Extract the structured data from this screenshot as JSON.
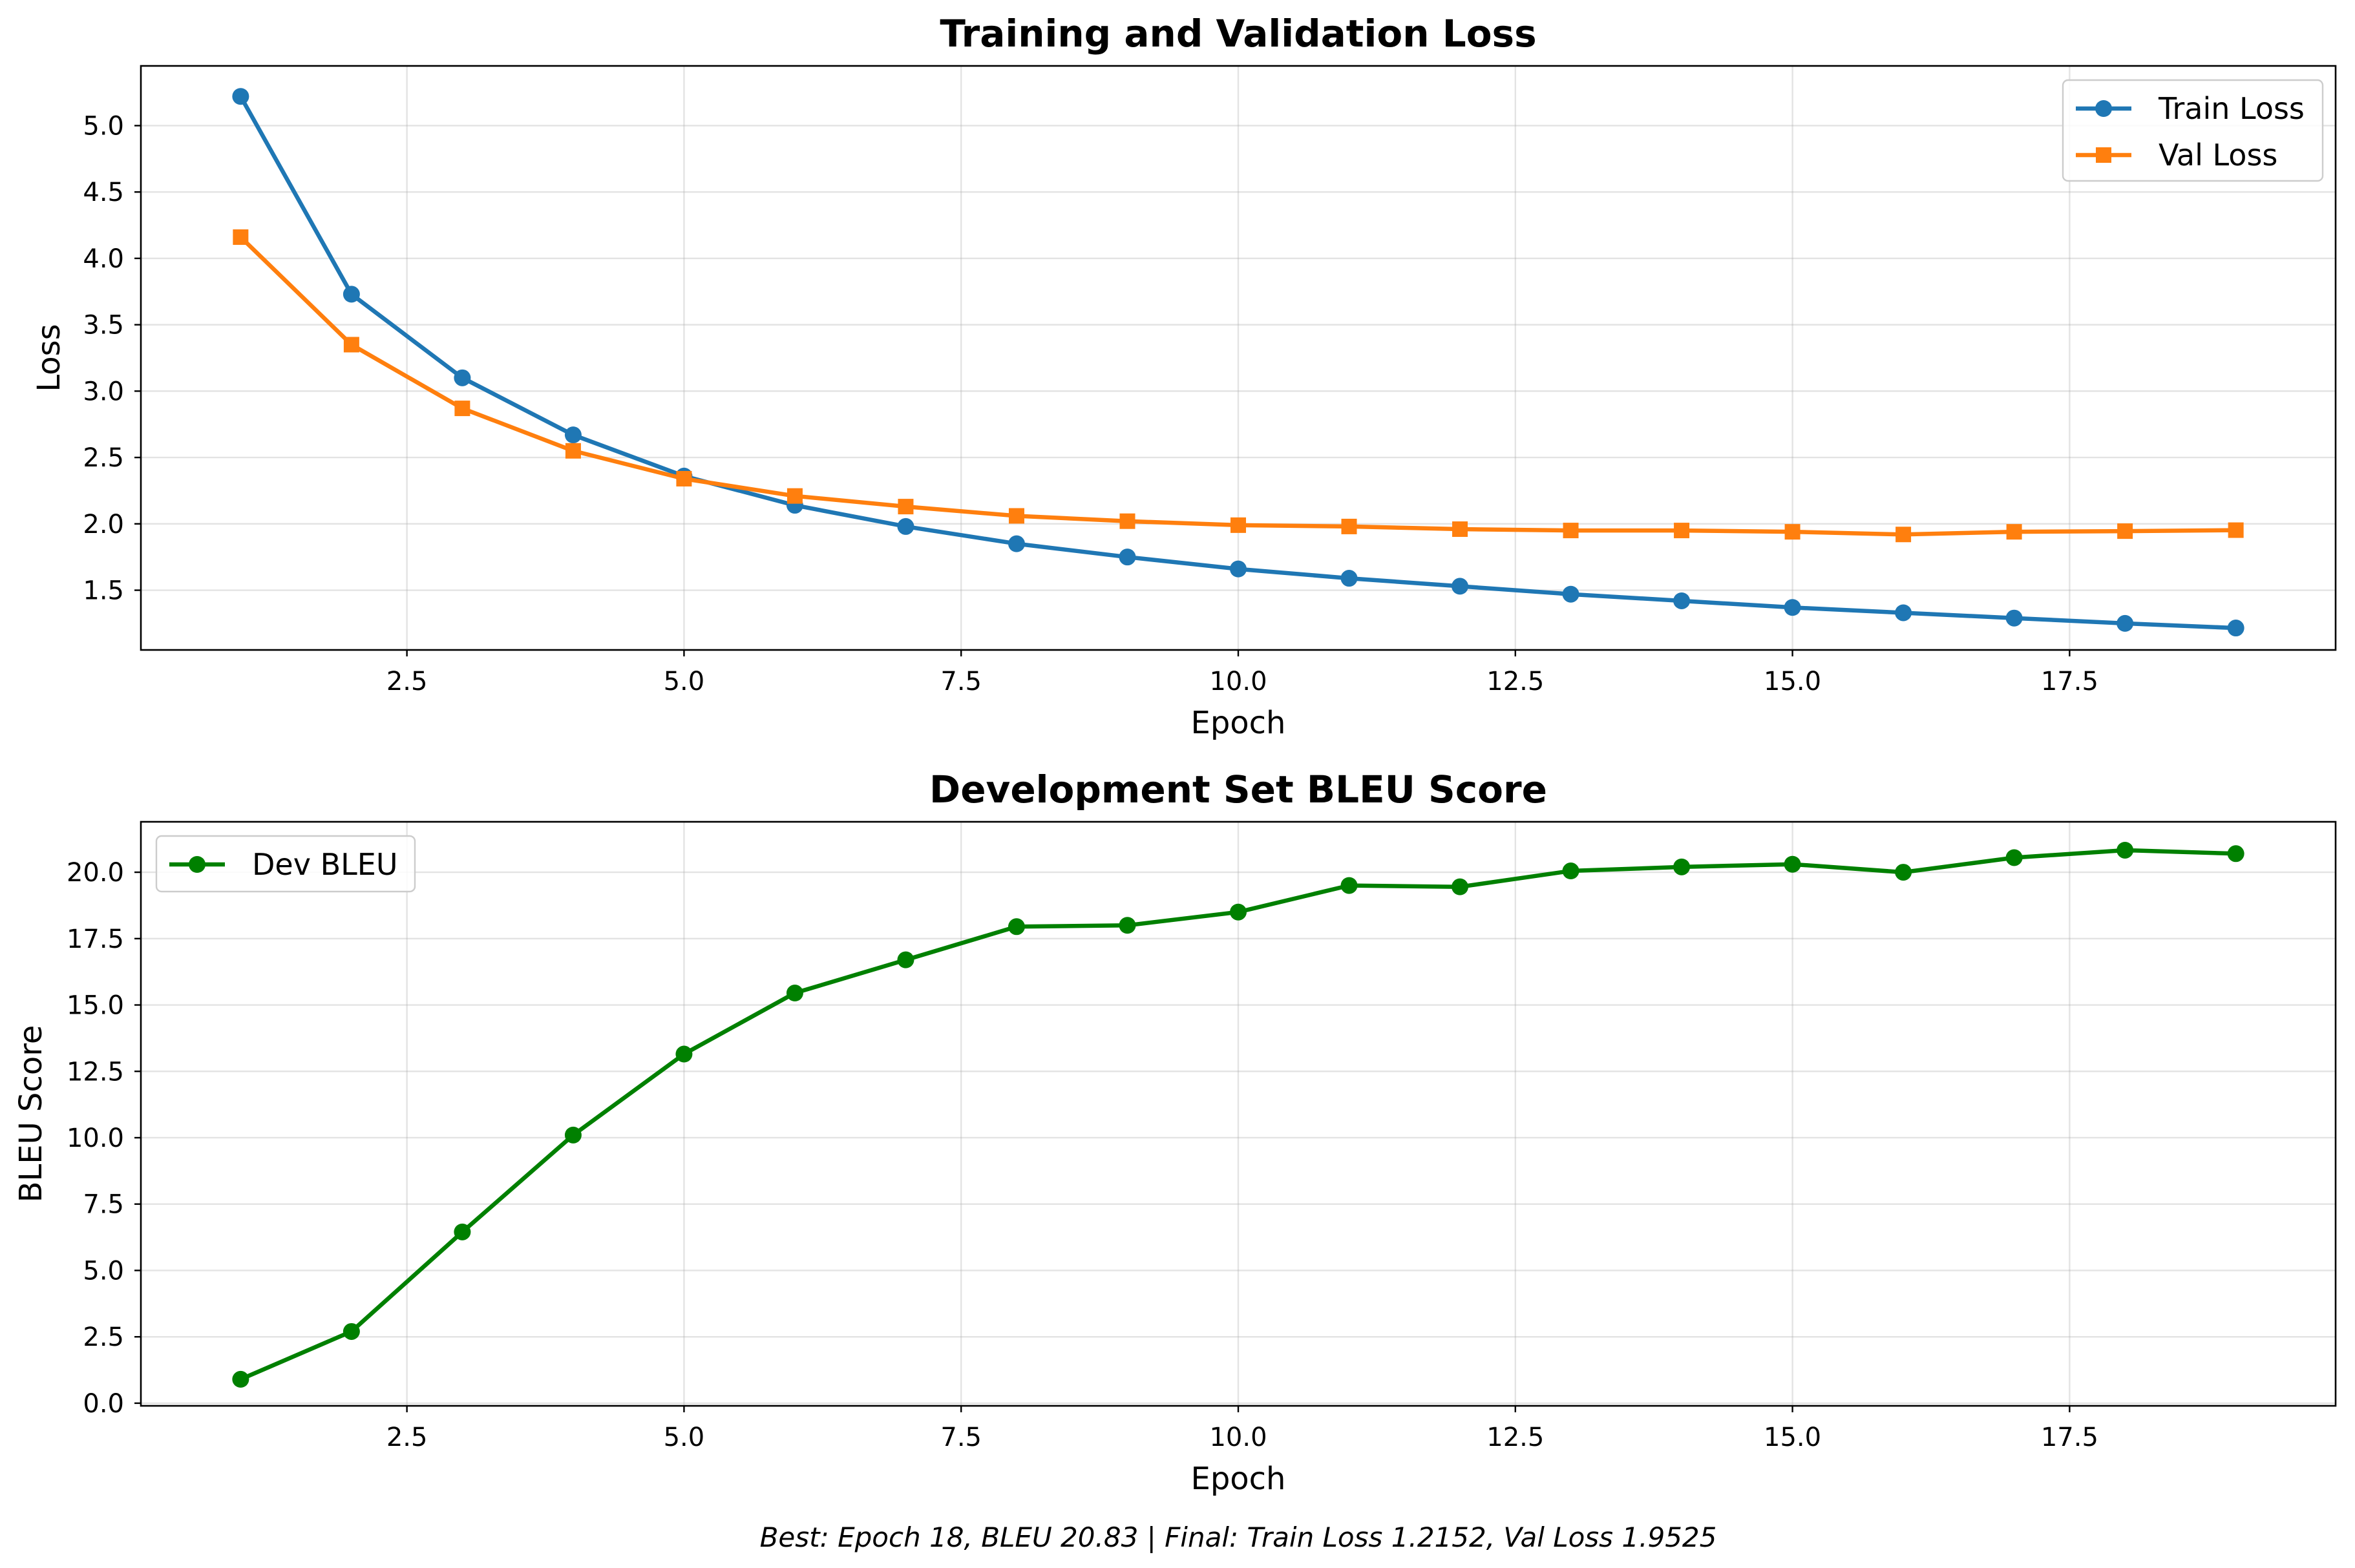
{
  "chart_data": [
    {
      "type": "line",
      "title": "Training and Validation Loss",
      "xlabel": "Epoch",
      "ylabel": "Loss",
      "xlim": [
        0.1,
        19.9
      ],
      "ylim": [
        1.05,
        5.45
      ],
      "xticks": [
        "2.5",
        "5.0",
        "7.5",
        "10.0",
        "12.5",
        "15.0",
        "17.5"
      ],
      "yticks": [
        "1.5",
        "2.0",
        "2.5",
        "3.0",
        "3.5",
        "4.0",
        "4.5",
        "5.0"
      ],
      "grid": true,
      "legend": "upper right",
      "x": [
        1,
        2,
        3,
        4,
        5,
        6,
        7,
        8,
        9,
        10,
        11,
        12,
        13,
        14,
        15,
        16,
        17,
        18,
        19
      ],
      "series": [
        {
          "name": "Train Loss",
          "color": "#1f77b4",
          "marker": "circle",
          "values": [
            5.22,
            3.73,
            3.1,
            2.67,
            2.36,
            2.14,
            1.98,
            1.85,
            1.75,
            1.66,
            1.59,
            1.53,
            1.47,
            1.42,
            1.37,
            1.33,
            1.29,
            1.25,
            1.2152
          ]
        },
        {
          "name": "Val Loss",
          "color": "#ff7f0e",
          "marker": "square",
          "values": [
            4.16,
            3.35,
            2.87,
            2.55,
            2.34,
            2.21,
            2.13,
            2.06,
            2.02,
            1.99,
            1.98,
            1.96,
            1.95,
            1.95,
            1.94,
            1.92,
            1.94,
            1.945,
            1.9525
          ]
        }
      ]
    },
    {
      "type": "line",
      "title": "Development Set BLEU Score",
      "xlabel": "Epoch",
      "ylabel": "BLEU Score",
      "xlim": [
        0.1,
        19.9
      ],
      "ylim": [
        -0.1,
        21.9
      ],
      "xticks": [
        "2.5",
        "5.0",
        "7.5",
        "10.0",
        "12.5",
        "15.0",
        "17.5"
      ],
      "yticks": [
        "0.0",
        "2.5",
        "5.0",
        "7.5",
        "10.0",
        "12.5",
        "15.0",
        "17.5",
        "20.0"
      ],
      "grid": true,
      "legend": "upper left",
      "x": [
        1,
        2,
        3,
        4,
        5,
        6,
        7,
        8,
        9,
        10,
        11,
        12,
        13,
        14,
        15,
        16,
        17,
        18,
        19
      ],
      "series": [
        {
          "name": "Dev BLEU",
          "color": "#008000",
          "marker": "circle",
          "values": [
            0.9,
            2.7,
            6.45,
            10.1,
            13.15,
            15.45,
            16.7,
            17.95,
            18.0,
            18.5,
            19.5,
            19.45,
            20.05,
            20.2,
            20.3,
            20.0,
            20.55,
            20.83,
            20.7
          ]
        }
      ]
    }
  ],
  "footer": "Best: Epoch 18, BLEU 20.83 | Final: Train Loss 1.2152, Val Loss 1.9525"
}
